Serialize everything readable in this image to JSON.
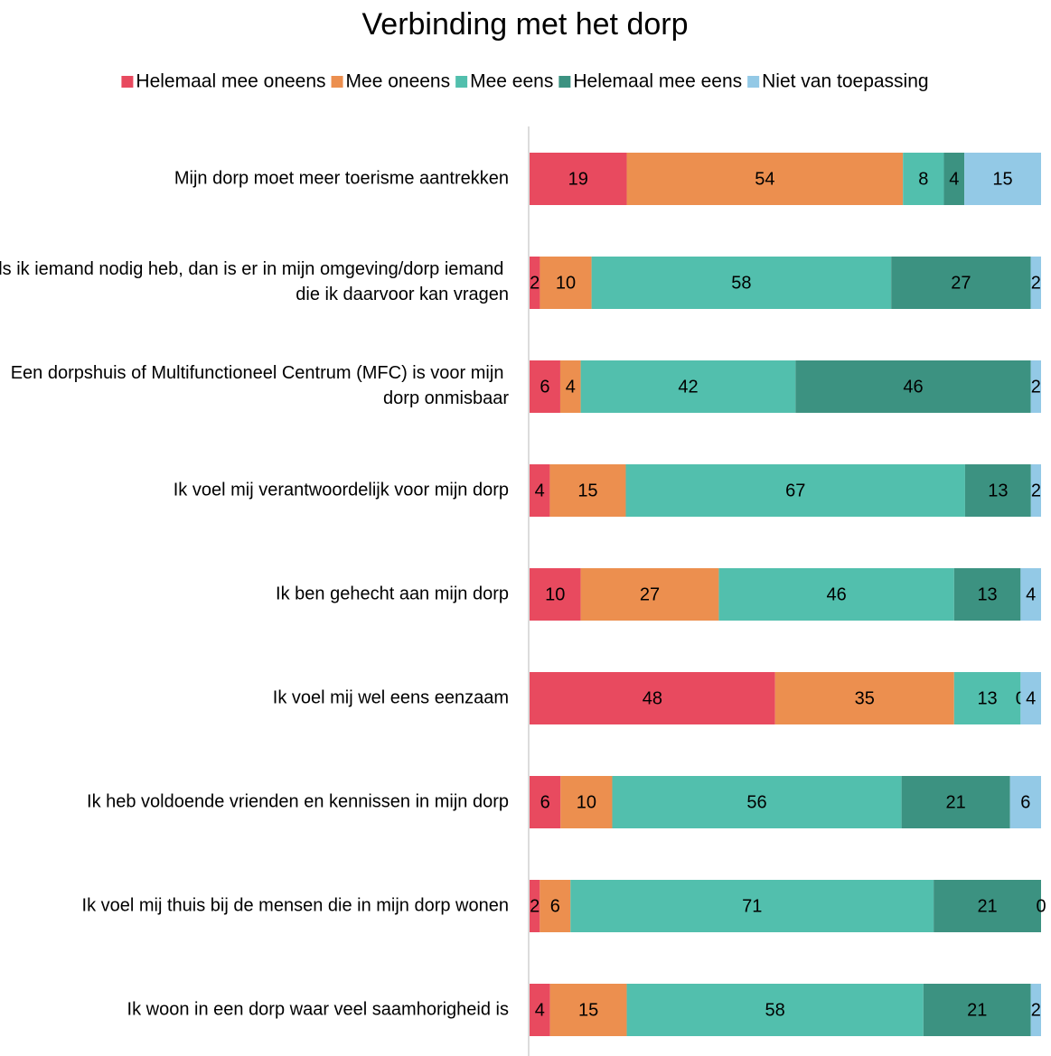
{
  "chart_data": {
    "type": "stacked_bar_percent",
    "orientation": "horizontal",
    "title": "Verbinding met het dorp",
    "categories": [
      "Mijn dorp moet meer toerisme aantrekken",
      "Als ik iemand nodig heb, dan is er in mijn omgeving/dorp iemand die ik daarvoor kan vragen",
      "Een dorpshuis of Multifunctioneel Centrum (MFC) is voor mijn dorp onmisbaar",
      "Ik voel mij verantwoordelijk voor mijn dorp",
      "Ik ben gehecht aan mijn dorp",
      "Ik voel mij wel eens eenzaam",
      "Ik heb voldoende vrienden en kennissen in mijn dorp",
      "Ik voel mij thuis bij de mensen die in mijn dorp wonen",
      "Ik woon in een dorp waar veel saamhorigheid is"
    ],
    "series": [
      {
        "name": "Helemaal mee oneens",
        "color": "#e84a5f",
        "values": [
          19,
          2,
          6,
          4,
          10,
          48,
          6,
          2,
          4
        ]
      },
      {
        "name": "Mee oneens",
        "color": "#ec8f4f",
        "values": [
          54,
          10,
          4,
          15,
          27,
          35,
          10,
          6,
          15
        ]
      },
      {
        "name": "Mee eens",
        "color": "#52bfad",
        "values": [
          8,
          58,
          42,
          67,
          46,
          13,
          56,
          71,
          58
        ]
      },
      {
        "name": "Helemaal mee eens",
        "color": "#3c9281",
        "values": [
          4,
          27,
          46,
          13,
          13,
          0,
          21,
          21,
          21
        ]
      },
      {
        "name": "Niet van toepassing",
        "color": "#93c9e6",
        "values": [
          15,
          2,
          2,
          2,
          4,
          4,
          6,
          0,
          2
        ]
      }
    ],
    "legend": "top"
  }
}
